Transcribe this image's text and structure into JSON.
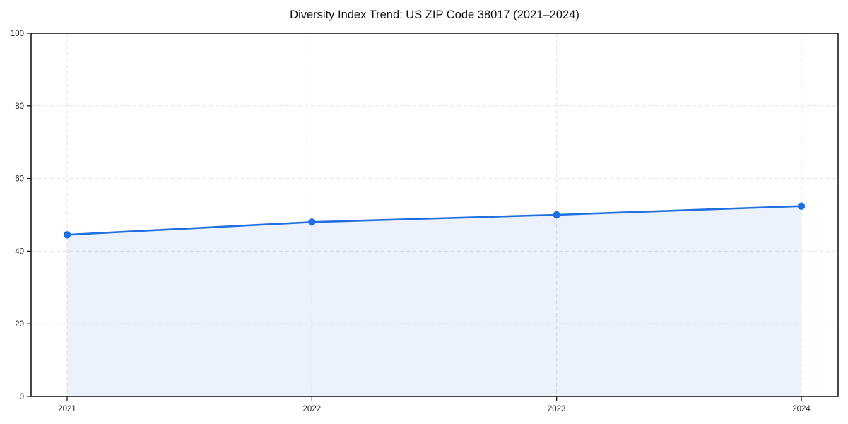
{
  "page": {
    "background_color": "#ffffff"
  },
  "chart_data": {
    "type": "area",
    "title": "Diversity Index Trend: US ZIP Code 38017 (2021–2024)",
    "categories": [
      "2021",
      "2022",
      "2023",
      "2024"
    ],
    "values": [
      44.5,
      48,
      50,
      52.4
    ],
    "xlabel": "",
    "ylabel": "",
    "ylim": [
      0,
      100
    ],
    "yticks": [
      0,
      20,
      40,
      60,
      80,
      100
    ],
    "grid": "dashed-both-axes",
    "legend_position": "none",
    "colors": {
      "line": "#1f6fe0",
      "marker": "#1f6fe0",
      "area_fill": "rgba(31,111,224,0.09)",
      "gridline": "#e2e2e2",
      "axis_frame": "#1a1a1a",
      "tick_mark": "#1a1a1a",
      "tick_label": "#222222",
      "title_text": "#111111"
    }
  }
}
